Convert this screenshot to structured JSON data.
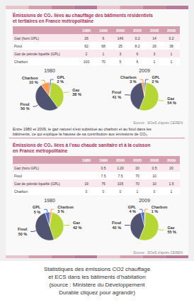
{
  "chart_data": [
    {
      "type": "pie",
      "title": "1980",
      "categories": [
        "GPL",
        "Gaz",
        "Fioul",
        "Charbon"
      ],
      "values": [
        2,
        38,
        50,
        10
      ],
      "value_labels": [
        "2 %",
        "38 %",
        "50 %",
        "10 %"
      ]
    },
    {
      "type": "pie",
      "title": "2009",
      "categories": [
        "GPL",
        "Gaz",
        "Fioul",
        "Charbon"
      ],
      "values": [
        2,
        54,
        41,
        3
      ],
      "value_labels": [
        "2 %",
        "54 %",
        "41 %",
        "3 %"
      ]
    },
    {
      "type": "pie",
      "title": "1980",
      "categories": [
        "Charbon",
        "Gaz",
        "Fioul",
        "GPL"
      ],
      "values": [
        3,
        42,
        50,
        5
      ],
      "value_labels": [
        "3 %",
        "42 %",
        "50 %",
        "5 %"
      ]
    },
    {
      "type": "pie",
      "title": "2009",
      "categories": [
        "Charbon",
        "Gaz",
        "Fioul",
        "GPL"
      ],
      "values": [
        1,
        55,
        40,
        4
      ],
      "value_labels": [
        "1 %",
        "55 %",
        "40 %",
        "4 %"
      ]
    }
  ],
  "sections": [
    {
      "title": "Émissions de CO₂ liées au chauffage des bâtiments résidentiels\net tertiaires en France métropolitaine",
      "table": {
        "headers": [
          null,
          "1980",
          "1990",
          "2000",
          "2005",
          "2008",
          "2009"
        ],
        "rows": [
          [
            "Gaz (hors GPL)",
            "26",
            "6",
            "146",
            "0.2",
            "14",
            "0.2"
          ],
          [
            "Fioul",
            "62",
            "68",
            "25",
            "8.2",
            "26",
            "38"
          ],
          [
            "Gaz de pétrole liquéfié (GPL)",
            "2",
            "1",
            "3",
            "6",
            "3",
            "1"
          ],
          [
            "Charbon",
            "100",
            "70",
            "5",
            "6",
            "1",
            "1"
          ]
        ]
      },
      "source": "Source : SOeS d’après CEREN"
    },
    {
      "title": "Émissions de CO₂ liées à l’eau chaude sanitaire et à la cuisson\nen France métropolitaine",
      "table": {
        "headers": [
          null,
          "1980",
          "1990",
          "2000",
          "2005",
          "2008",
          "2009"
        ],
        "rows": [
          [
            "Gaz (hors GPL)",
            null,
            "0.5",
            "1.20",
            "20",
            "0.5",
            "20"
          ],
          [
            "Fioul",
            null,
            "7.5",
            "7.5",
            "70",
            "10",
            null
          ],
          [
            "Gaz de pétrole liquéfié (GPL)",
            "19",
            "75",
            "105",
            "70",
            "10",
            "1.5"
          ],
          [
            "Charbon",
            "0",
            "0",
            "0",
            "1",
            "0",
            "1"
          ]
        ]
      },
      "source": "Source : SOeS d’après CEREN"
    }
  ],
  "intertext": "Entre 1980 et 2009, le gaz naturel s’est substitué au charbon et au fioul dans les\nbâtiments, ce qui explique la hausse de sa contribution aux émissions de CO₂.",
  "caption": "Statistiques des émissions CO2 chauffage\net ECS dans les bâtiments d’habitation\n(source : Ministère du Développement\nDurable cliquez pour agrandir)"
}
